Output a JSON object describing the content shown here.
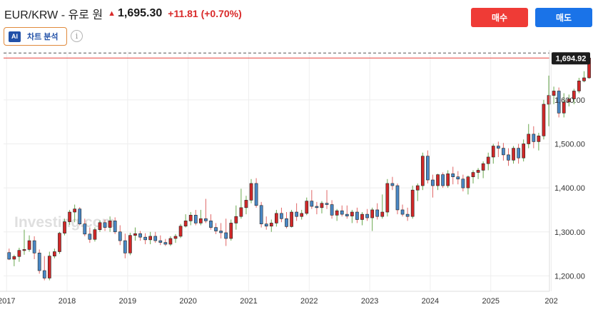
{
  "header": {
    "pair_title": "EUR/KRW - 유로 원",
    "price": "1,695.30",
    "change": "+11.81 (+0.70%)"
  },
  "analysis_button": {
    "badge": "AI",
    "label": "차트 분석"
  },
  "info_icon": "i",
  "trade_buttons": {
    "buy": "매수",
    "sell": "매도"
  },
  "watermark": "Investing.com",
  "colors": {
    "up": "#d12828",
    "down": "#4a88c6",
    "price_line": "#e8413c",
    "buy_button": "#ef3b36",
    "sell_button": "#1a73e8",
    "current_price_tag": "#1d1d1d"
  },
  "chart_data": {
    "type": "candlestick",
    "interval": "monthly",
    "y_ticks": [
      "1,600.00",
      "1,500.00",
      "1,400.00",
      "1,300.00",
      "1,200.00"
    ],
    "x_ticks": [
      "2017",
      "2018",
      "2019",
      "2020",
      "2021",
      "2022",
      "2023",
      "2024",
      "2025",
      "202"
    ],
    "current_price_tag": "1,694.92",
    "ylim": [
      1165,
      1710
    ],
    "xlim": [
      2016.95,
      2025.97
    ],
    "series": [
      {
        "o": 1253,
        "h": 1262,
        "l": 1236,
        "c": 1238
      },
      {
        "o": 1238,
        "h": 1248,
        "l": 1222,
        "c": 1244
      },
      {
        "o": 1244,
        "h": 1264,
        "l": 1232,
        "c": 1258
      },
      {
        "o": 1258,
        "h": 1305,
        "l": 1248,
        "c": 1260
      },
      {
        "o": 1260,
        "h": 1292,
        "l": 1255,
        "c": 1280
      },
      {
        "o": 1280,
        "h": 1290,
        "l": 1238,
        "c": 1252
      },
      {
        "o": 1252,
        "h": 1260,
        "l": 1205,
        "c": 1212
      },
      {
        "o": 1212,
        "h": 1245,
        "l": 1190,
        "c": 1195
      },
      {
        "o": 1195,
        "h": 1255,
        "l": 1190,
        "c": 1245
      },
      {
        "o": 1245,
        "h": 1262,
        "l": 1240,
        "c": 1255
      },
      {
        "o": 1255,
        "h": 1300,
        "l": 1250,
        "c": 1297
      },
      {
        "o": 1297,
        "h": 1330,
        "l": 1292,
        "c": 1323
      },
      {
        "o": 1323,
        "h": 1350,
        "l": 1316,
        "c": 1345
      },
      {
        "o": 1345,
        "h": 1362,
        "l": 1322,
        "c": 1352
      },
      {
        "o": 1352,
        "h": 1356,
        "l": 1315,
        "c": 1318
      },
      {
        "o": 1318,
        "h": 1330,
        "l": 1290,
        "c": 1295
      },
      {
        "o": 1295,
        "h": 1310,
        "l": 1275,
        "c": 1283
      },
      {
        "o": 1283,
        "h": 1310,
        "l": 1278,
        "c": 1305
      },
      {
        "o": 1305,
        "h": 1326,
        "l": 1300,
        "c": 1321
      },
      {
        "o": 1321,
        "h": 1328,
        "l": 1302,
        "c": 1310
      },
      {
        "o": 1310,
        "h": 1335,
        "l": 1300,
        "c": 1325
      },
      {
        "o": 1325,
        "h": 1333,
        "l": 1295,
        "c": 1300
      },
      {
        "o": 1300,
        "h": 1315,
        "l": 1270,
        "c": 1280
      },
      {
        "o": 1280,
        "h": 1296,
        "l": 1240,
        "c": 1252
      },
      {
        "o": 1252,
        "h": 1298,
        "l": 1247,
        "c": 1292
      },
      {
        "o": 1292,
        "h": 1310,
        "l": 1280,
        "c": 1296
      },
      {
        "o": 1296,
        "h": 1302,
        "l": 1280,
        "c": 1288
      },
      {
        "o": 1288,
        "h": 1297,
        "l": 1272,
        "c": 1282
      },
      {
        "o": 1282,
        "h": 1300,
        "l": 1272,
        "c": 1290
      },
      {
        "o": 1290,
        "h": 1300,
        "l": 1275,
        "c": 1280
      },
      {
        "o": 1280,
        "h": 1292,
        "l": 1270,
        "c": 1276
      },
      {
        "o": 1276,
        "h": 1284,
        "l": 1268,
        "c": 1272
      },
      {
        "o": 1272,
        "h": 1290,
        "l": 1268,
        "c": 1285
      },
      {
        "o": 1285,
        "h": 1295,
        "l": 1275,
        "c": 1290
      },
      {
        "o": 1290,
        "h": 1318,
        "l": 1286,
        "c": 1313
      },
      {
        "o": 1313,
        "h": 1340,
        "l": 1310,
        "c": 1325
      },
      {
        "o": 1325,
        "h": 1345,
        "l": 1315,
        "c": 1338
      },
      {
        "o": 1338,
        "h": 1350,
        "l": 1315,
        "c": 1320
      },
      {
        "o": 1320,
        "h": 1350,
        "l": 1315,
        "c": 1330
      },
      {
        "o": 1330,
        "h": 1375,
        "l": 1320,
        "c": 1325
      },
      {
        "o": 1325,
        "h": 1340,
        "l": 1305,
        "c": 1310
      },
      {
        "o": 1310,
        "h": 1320,
        "l": 1295,
        "c": 1302
      },
      {
        "o": 1302,
        "h": 1320,
        "l": 1285,
        "c": 1298
      },
      {
        "o": 1298,
        "h": 1330,
        "l": 1268,
        "c": 1285
      },
      {
        "o": 1285,
        "h": 1328,
        "l": 1280,
        "c": 1320
      },
      {
        "o": 1320,
        "h": 1360,
        "l": 1305,
        "c": 1335
      },
      {
        "o": 1335,
        "h": 1398,
        "l": 1330,
        "c": 1355
      },
      {
        "o": 1355,
        "h": 1382,
        "l": 1340,
        "c": 1372
      },
      {
        "o": 1372,
        "h": 1420,
        "l": 1365,
        "c": 1410
      },
      {
        "o": 1410,
        "h": 1422,
        "l": 1355,
        "c": 1360
      },
      {
        "o": 1360,
        "h": 1368,
        "l": 1310,
        "c": 1318
      },
      {
        "o": 1318,
        "h": 1335,
        "l": 1305,
        "c": 1313
      },
      {
        "o": 1313,
        "h": 1328,
        "l": 1300,
        "c": 1320
      },
      {
        "o": 1320,
        "h": 1350,
        "l": 1312,
        "c": 1342
      },
      {
        "o": 1342,
        "h": 1355,
        "l": 1322,
        "c": 1330
      },
      {
        "o": 1330,
        "h": 1345,
        "l": 1308,
        "c": 1312
      },
      {
        "o": 1312,
        "h": 1350,
        "l": 1310,
        "c": 1345
      },
      {
        "o": 1345,
        "h": 1365,
        "l": 1325,
        "c": 1335
      },
      {
        "o": 1335,
        "h": 1350,
        "l": 1328,
        "c": 1342
      },
      {
        "o": 1342,
        "h": 1378,
        "l": 1338,
        "c": 1370
      },
      {
        "o": 1370,
        "h": 1395,
        "l": 1352,
        "c": 1358
      },
      {
        "o": 1358,
        "h": 1368,
        "l": 1340,
        "c": 1355
      },
      {
        "o": 1355,
        "h": 1370,
        "l": 1342,
        "c": 1365
      },
      {
        "o": 1365,
        "h": 1395,
        "l": 1352,
        "c": 1362
      },
      {
        "o": 1362,
        "h": 1372,
        "l": 1330,
        "c": 1338
      },
      {
        "o": 1338,
        "h": 1352,
        "l": 1325,
        "c": 1348
      },
      {
        "o": 1348,
        "h": 1360,
        "l": 1335,
        "c": 1340
      },
      {
        "o": 1340,
        "h": 1360,
        "l": 1330,
        "c": 1336
      },
      {
        "o": 1336,
        "h": 1350,
        "l": 1320,
        "c": 1345
      },
      {
        "o": 1345,
        "h": 1355,
        "l": 1320,
        "c": 1328
      },
      {
        "o": 1328,
        "h": 1345,
        "l": 1315,
        "c": 1340
      },
      {
        "o": 1340,
        "h": 1352,
        "l": 1325,
        "c": 1332
      },
      {
        "o": 1332,
        "h": 1355,
        "l": 1302,
        "c": 1350
      },
      {
        "o": 1350,
        "h": 1365,
        "l": 1328,
        "c": 1335
      },
      {
        "o": 1335,
        "h": 1385,
        "l": 1330,
        "c": 1345
      },
      {
        "o": 1345,
        "h": 1420,
        "l": 1335,
        "c": 1410
      },
      {
        "o": 1410,
        "h": 1425,
        "l": 1395,
        "c": 1405
      },
      {
        "o": 1405,
        "h": 1410,
        "l": 1340,
        "c": 1350
      },
      {
        "o": 1350,
        "h": 1362,
        "l": 1335,
        "c": 1340
      },
      {
        "o": 1340,
        "h": 1355,
        "l": 1325,
        "c": 1335
      },
      {
        "o": 1335,
        "h": 1405,
        "l": 1330,
        "c": 1395
      },
      {
        "o": 1395,
        "h": 1410,
        "l": 1370,
        "c": 1405
      },
      {
        "o": 1405,
        "h": 1480,
        "l": 1395,
        "c": 1472
      },
      {
        "o": 1472,
        "h": 1485,
        "l": 1410,
        "c": 1418
      },
      {
        "o": 1418,
        "h": 1430,
        "l": 1378,
        "c": 1405
      },
      {
        "o": 1405,
        "h": 1432,
        "l": 1395,
        "c": 1430
      },
      {
        "o": 1430,
        "h": 1435,
        "l": 1400,
        "c": 1405
      },
      {
        "o": 1405,
        "h": 1440,
        "l": 1400,
        "c": 1432
      },
      {
        "o": 1432,
        "h": 1448,
        "l": 1408,
        "c": 1425
      },
      {
        "o": 1425,
        "h": 1438,
        "l": 1408,
        "c": 1420
      },
      {
        "o": 1420,
        "h": 1430,
        "l": 1392,
        "c": 1400
      },
      {
        "o": 1400,
        "h": 1428,
        "l": 1385,
        "c": 1425
      },
      {
        "o": 1425,
        "h": 1440,
        "l": 1410,
        "c": 1435
      },
      {
        "o": 1435,
        "h": 1445,
        "l": 1420,
        "c": 1440
      },
      {
        "o": 1440,
        "h": 1460,
        "l": 1422,
        "c": 1455
      },
      {
        "o": 1455,
        "h": 1480,
        "l": 1440,
        "c": 1470
      },
      {
        "o": 1470,
        "h": 1500,
        "l": 1455,
        "c": 1495
      },
      {
        "o": 1495,
        "h": 1505,
        "l": 1470,
        "c": 1490
      },
      {
        "o": 1490,
        "h": 1502,
        "l": 1462,
        "c": 1475
      },
      {
        "o": 1475,
        "h": 1490,
        "l": 1450,
        "c": 1463
      },
      {
        "o": 1463,
        "h": 1495,
        "l": 1455,
        "c": 1490
      },
      {
        "o": 1490,
        "h": 1500,
        "l": 1455,
        "c": 1468
      },
      {
        "o": 1468,
        "h": 1510,
        "l": 1460,
        "c": 1500
      },
      {
        "o": 1500,
        "h": 1545,
        "l": 1490,
        "c": 1522
      },
      {
        "o": 1522,
        "h": 1540,
        "l": 1490,
        "c": 1505
      },
      {
        "o": 1505,
        "h": 1525,
        "l": 1485,
        "c": 1518
      },
      {
        "o": 1518,
        "h": 1600,
        "l": 1510,
        "c": 1590
      },
      {
        "o": 1590,
        "h": 1655,
        "l": 1540,
        "c": 1610
      },
      {
        "o": 1610,
        "h": 1630,
        "l": 1590,
        "c": 1620
      },
      {
        "o": 1620,
        "h": 1628,
        "l": 1560,
        "c": 1570
      },
      {
        "o": 1570,
        "h": 1615,
        "l": 1560,
        "c": 1595
      },
      {
        "o": 1595,
        "h": 1612,
        "l": 1585,
        "c": 1602
      },
      {
        "o": 1602,
        "h": 1625,
        "l": 1590,
        "c": 1620
      },
      {
        "o": 1620,
        "h": 1650,
        "l": 1615,
        "c": 1643
      },
      {
        "o": 1643,
        "h": 1665,
        "l": 1640,
        "c": 1650
      },
      {
        "o": 1650,
        "h": 1700,
        "l": 1648,
        "c": 1695
      }
    ]
  }
}
